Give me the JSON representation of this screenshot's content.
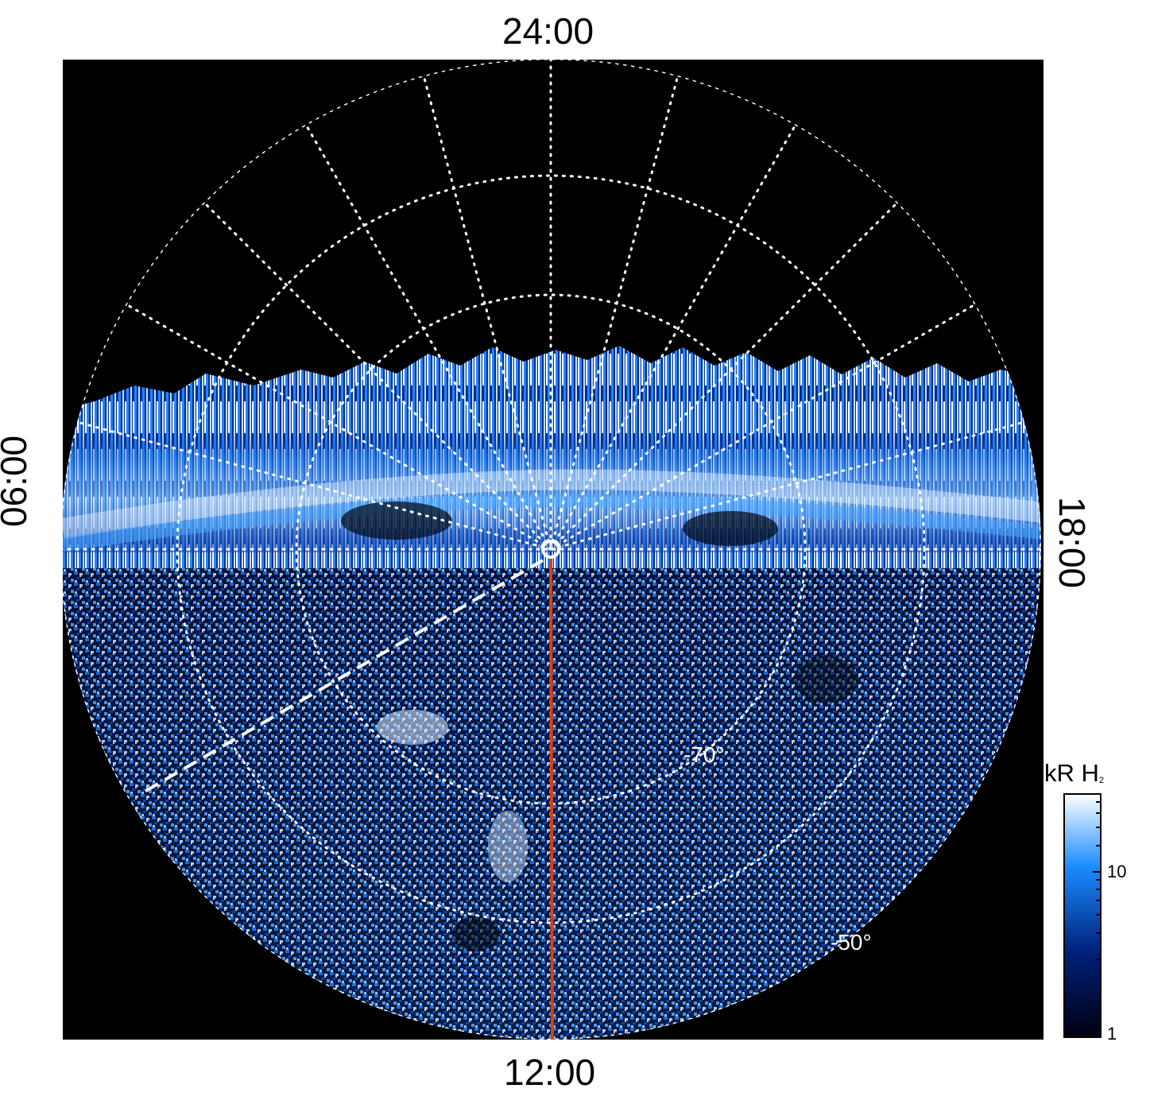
{
  "labels": {
    "top": "24:00",
    "bottom": "12:00",
    "left": "06:00",
    "right": "18:00",
    "lat_70": "-70°",
    "lat_50": "-50°"
  },
  "colorbar": {
    "title": "kR H",
    "title_sub": "2",
    "ticks": [
      "10",
      "1"
    ],
    "scale": "log",
    "colors": [
      "#000010",
      "#00207a",
      "#1a8cff",
      "#ffffff"
    ]
  },
  "colors": {
    "background": "#000000",
    "grid": "#ffffff",
    "line": "#d84010"
  }
}
